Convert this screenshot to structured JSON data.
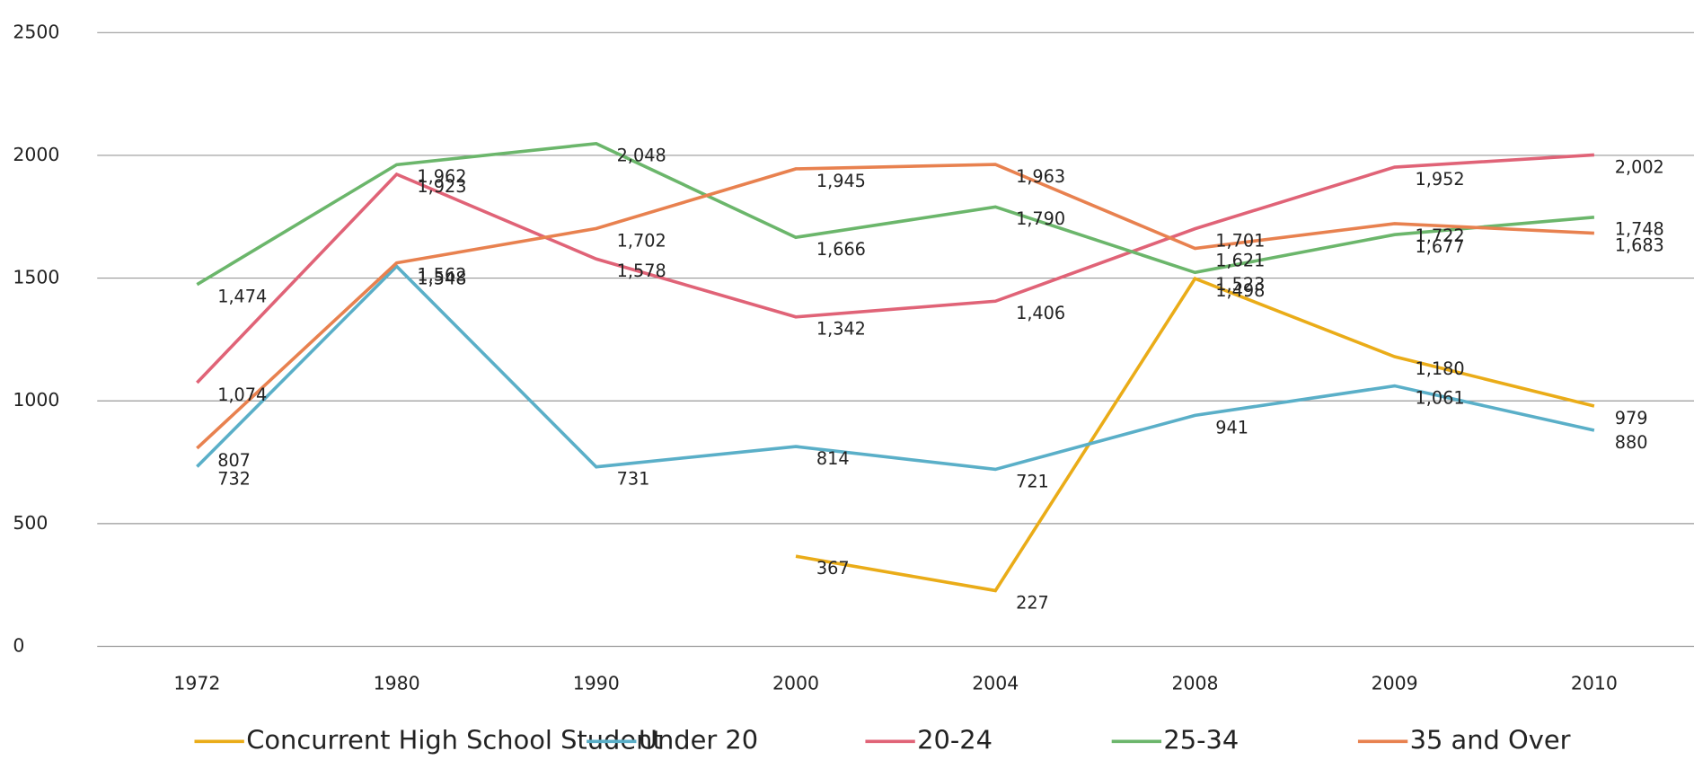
{
  "chart_data": {
    "type": "line",
    "categories": [
      "1972",
      "1980",
      "1990",
      "2000",
      "2004",
      "2008",
      "2009",
      "2010"
    ],
    "series": [
      {
        "name": "Concurrent High School Student",
        "color": "#eaac18",
        "values": [
          null,
          null,
          null,
          367,
          227,
          1498,
          1180,
          979
        ],
        "value_labels": [
          null,
          null,
          null,
          "367",
          "227",
          "1,498",
          "1,180",
          "979"
        ]
      },
      {
        "name": "Under 20",
        "color": "#5aafc8",
        "values": [
          732,
          1548,
          731,
          814,
          721,
          941,
          1061,
          880
        ],
        "value_labels": [
          "732",
          "1,548",
          "731",
          "814",
          "721",
          "941",
          "1,061",
          "880"
        ]
      },
      {
        "name": "20-24",
        "color": "#e06377",
        "values": [
          1074,
          1923,
          1578,
          1342,
          1406,
          1701,
          1952,
          2002
        ],
        "value_labels": [
          "1,074",
          "1,923",
          "1,578",
          "1,342",
          "1,406",
          "1,701",
          "1,952",
          "2,002"
        ]
      },
      {
        "name": "25-34",
        "color": "#6bb66b",
        "values": [
          1474,
          1962,
          2048,
          1666,
          1790,
          1523,
          1677,
          1748
        ],
        "value_labels": [
          "1,474",
          "1,962",
          "2,048",
          "1,666",
          "1,790",
          "1,523",
          "1,677",
          "1,748"
        ]
      },
      {
        "name": "35 and Over",
        "color": "#e8814f",
        "values": [
          807,
          1562,
          1702,
          1945,
          1963,
          1621,
          1722,
          1683
        ],
        "value_labels": [
          "807",
          "1,562",
          "1,702",
          "1,945",
          "1,963",
          "1,621",
          "1,722",
          "1,683"
        ]
      }
    ],
    "ylim": [
      0,
      2500
    ],
    "yticks": [
      0,
      500,
      1000,
      1500,
      2000,
      2500
    ],
    "grid": true,
    "legend": "bottom"
  }
}
